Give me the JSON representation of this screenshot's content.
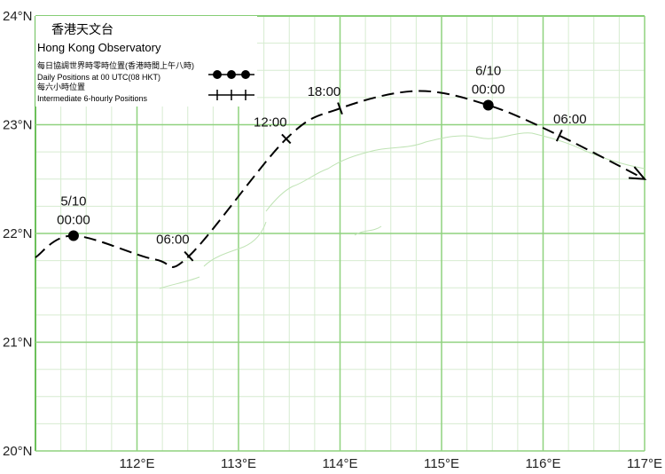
{
  "legend": {
    "title_zh": "香港天文台",
    "title_en": "Hong Kong Observatory",
    "daily_zh": "每日協調世界時零時位置(香港時間上午八時)",
    "daily_en": "Daily Positions at 00 UTC(08 HKT)",
    "hourly_zh": "每六小時位置",
    "hourly_en": "Intermediate 6-hourly Positions"
  },
  "map": {
    "lon_range": [
      111,
      117
    ],
    "lat_range": [
      20,
      24
    ],
    "lon_ticks": [
      {
        "value": 112,
        "label": "112°E"
      },
      {
        "value": 113,
        "label": "113°E"
      },
      {
        "value": 114,
        "label": "114°E"
      },
      {
        "value": 115,
        "label": "115°E"
      },
      {
        "value": 116,
        "label": "116°E"
      },
      {
        "value": 117,
        "label": "117°E"
      }
    ],
    "lat_ticks": [
      {
        "value": 20,
        "label": "20°N"
      },
      {
        "value": 21,
        "label": "21°N"
      },
      {
        "value": 22,
        "label": "22°N"
      },
      {
        "value": 23,
        "label": "23°N"
      },
      {
        "value": 24,
        "label": "24°N"
      }
    ]
  },
  "track": [
    {
      "lon": 111.0,
      "lat": 21.78
    },
    {
      "lon": 111.375,
      "lat": 21.98,
      "kind": "daily",
      "date": "5/10",
      "time": "00:00"
    },
    {
      "lon": 112.18,
      "lat": 21.76
    },
    {
      "lon": 112.51,
      "lat": 21.79,
      "kind": "6-hourly",
      "time": "06:00"
    },
    {
      "lon": 113.47,
      "lat": 22.87,
      "kind": "6-hourly",
      "time": "12:00"
    },
    {
      "lon": 114.0,
      "lat": 23.15,
      "kind": "6-hourly",
      "time": "18:00"
    },
    {
      "lon": 114.76,
      "lat": 23.31
    },
    {
      "lon": 115.46,
      "lat": 23.18,
      "kind": "daily",
      "date": "6/10",
      "time": "00:00"
    },
    {
      "lon": 116.16,
      "lat": 22.9,
      "kind": "6-hourly",
      "time": "06:00"
    },
    {
      "lon": 117.0,
      "lat": 22.5
    }
  ]
}
